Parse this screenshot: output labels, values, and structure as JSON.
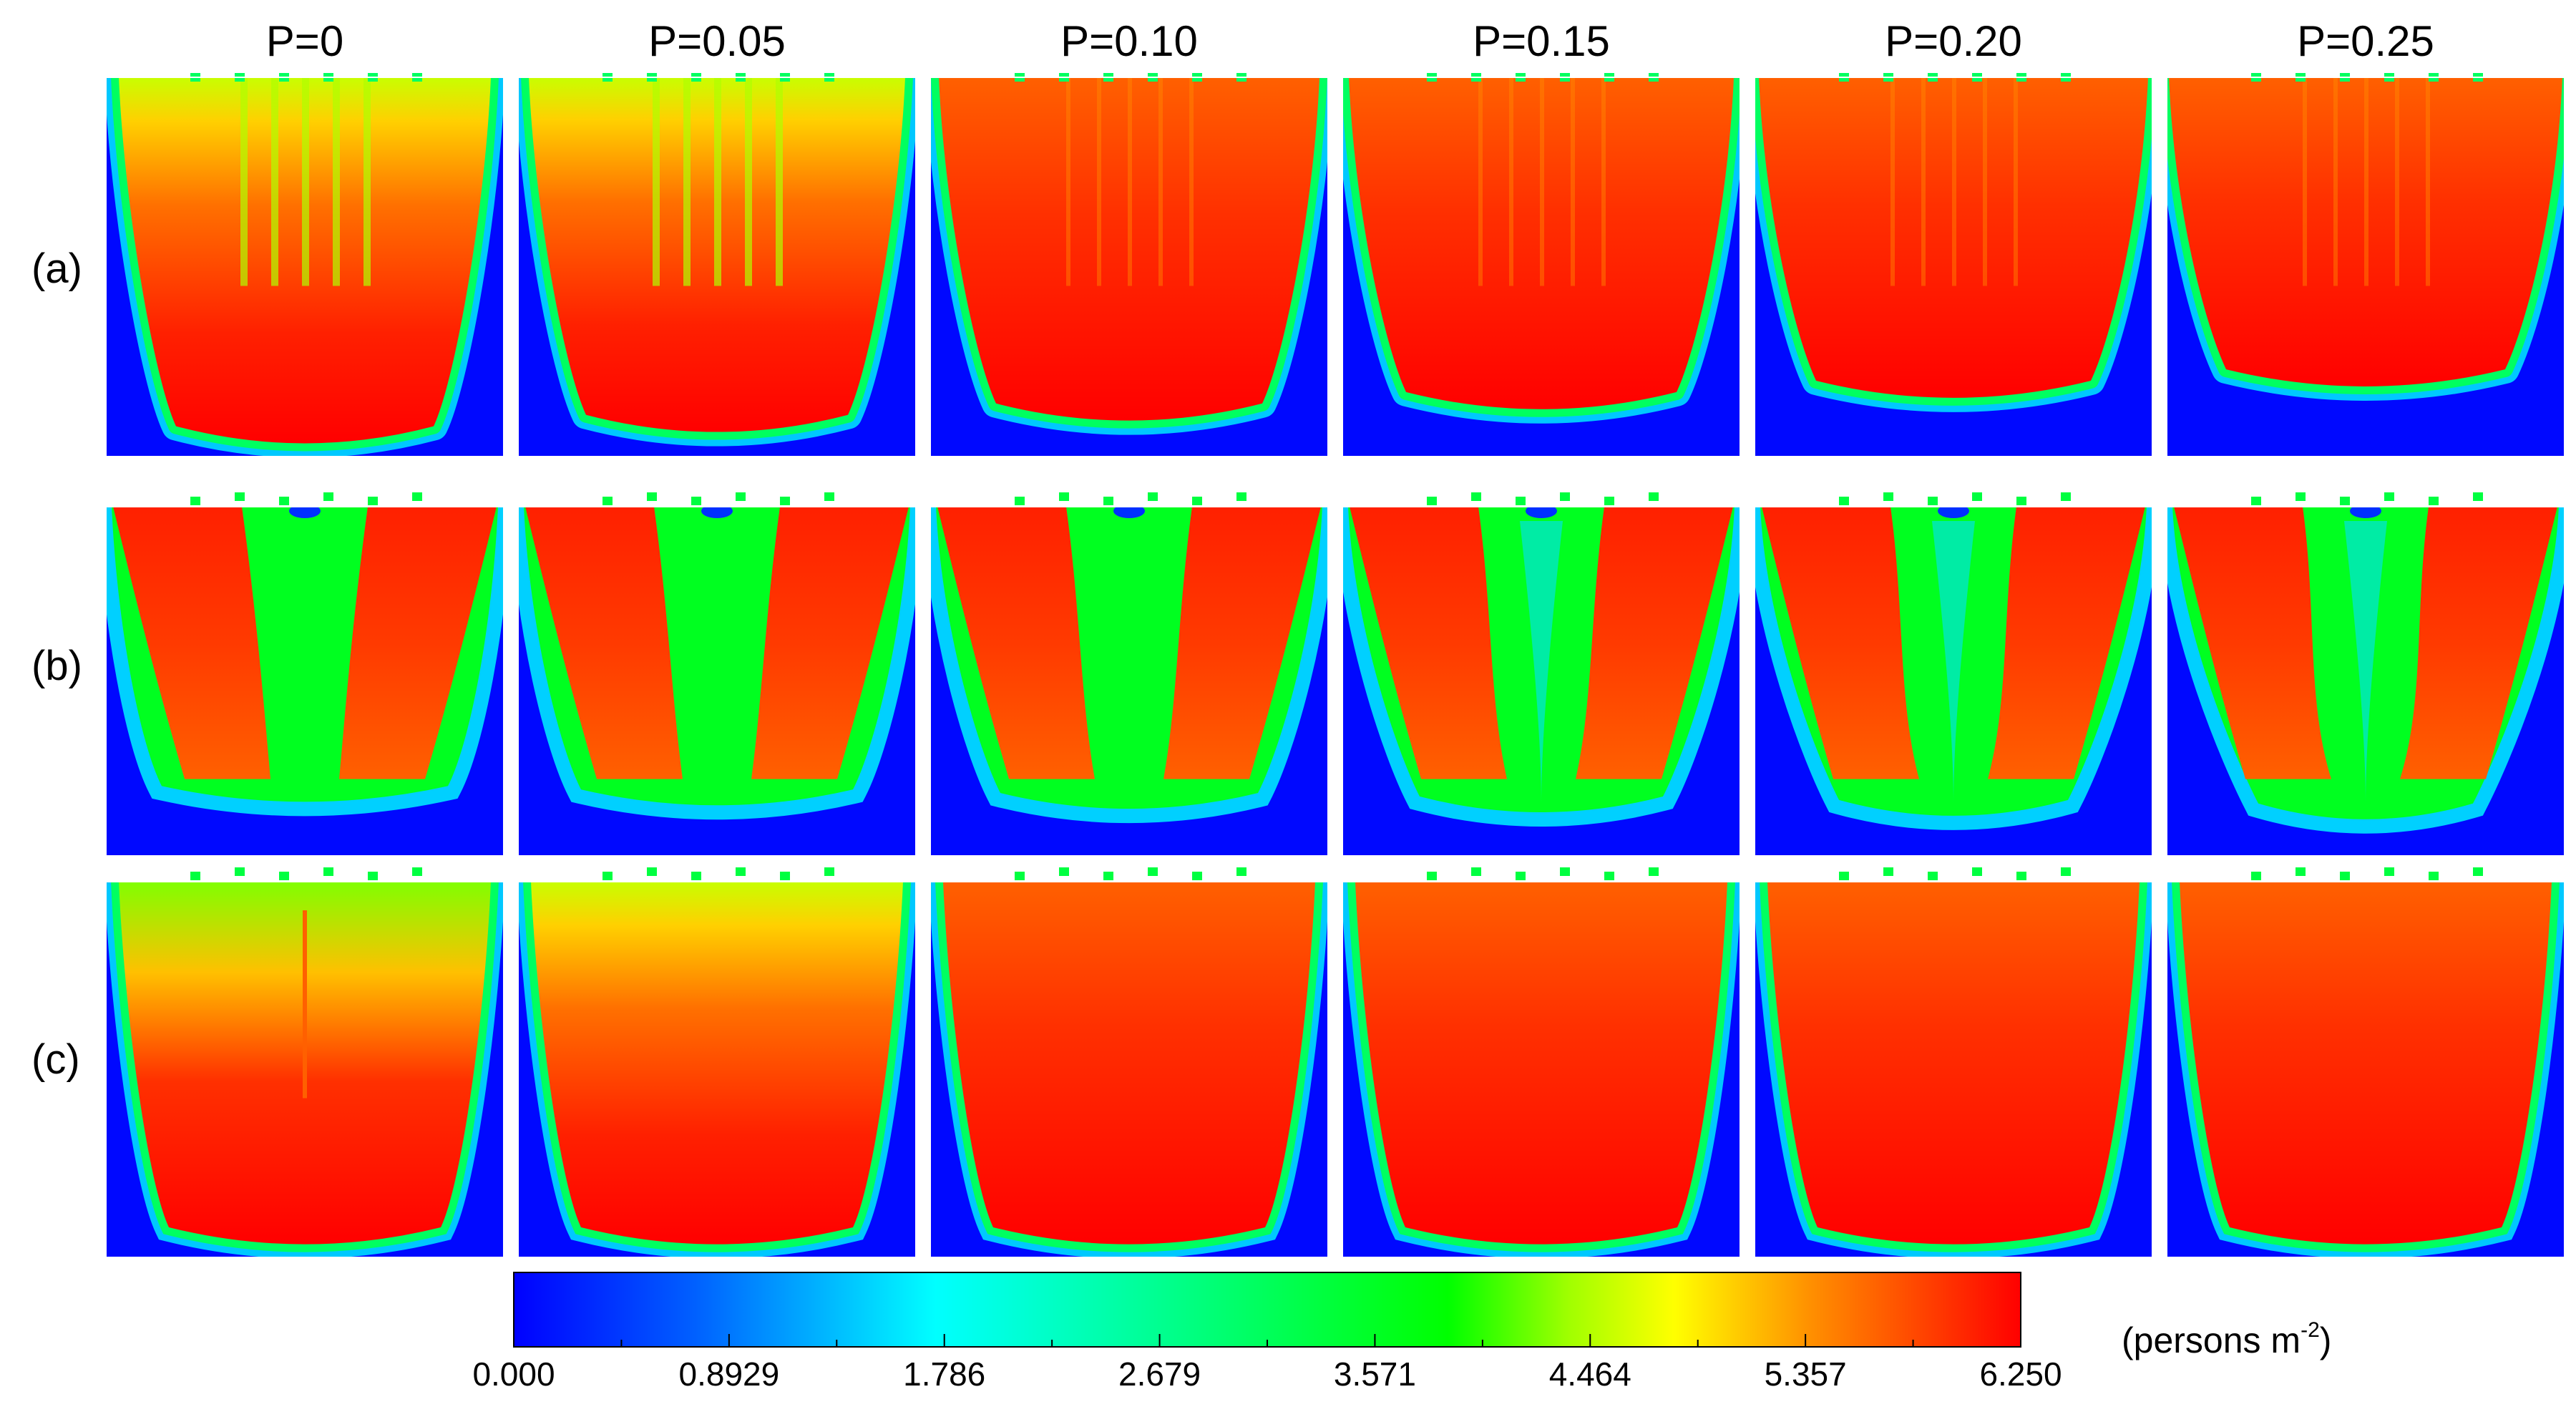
{
  "figure": {
    "columns": [
      "P=0",
      "P=0.05",
      "P=0.10",
      "P=0.15",
      "P=0.20",
      "P=0.25"
    ],
    "rows": [
      "(a)",
      "(b)",
      "(c)"
    ],
    "colorbar": {
      "ticks": [
        "0.000",
        "0.8929",
        "1.786",
        "2.679",
        "3.571",
        "4.464",
        "5.357",
        "6.250"
      ],
      "min": 0.0,
      "max": 6.25,
      "unit_prefix": "(persons m",
      "unit_exp": "-2",
      "unit_suffix": ")",
      "stops": [
        "#0000ff",
        "#0080ff",
        "#00ffff",
        "#00ff80",
        "#00ff00",
        "#80ff00",
        "#ffff00",
        "#ffa000",
        "#ff5000",
        "#ff0000"
      ]
    }
  }
}
